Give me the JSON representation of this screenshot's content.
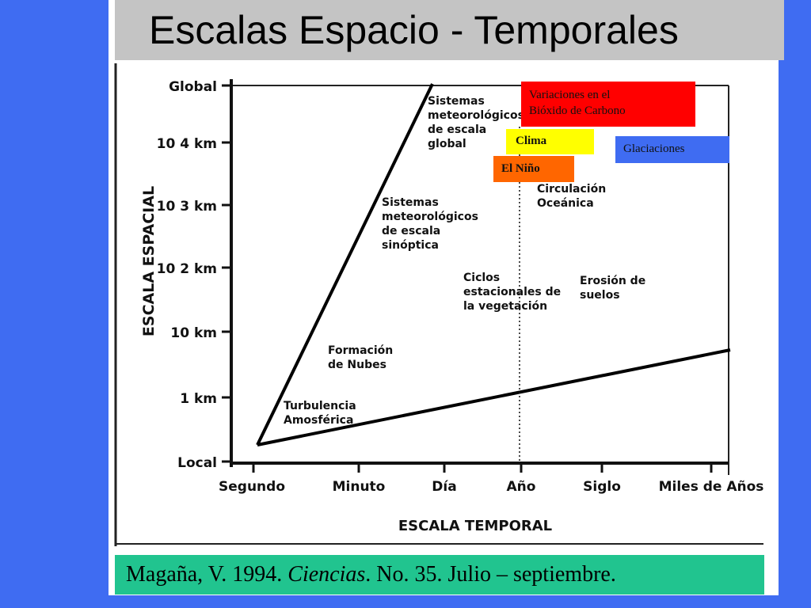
{
  "title": "Escalas Espacio - Temporales",
  "y_axis": {
    "label": "ESCALA ESPACIAL",
    "ticks": [
      "Global",
      "10 4 km",
      "10 3 km",
      "10 2 km",
      "10 km",
      "1 km",
      "Local"
    ]
  },
  "x_axis": {
    "label": "ESCALA TEMPORAL",
    "ticks": [
      "Segundo",
      "Minuto",
      "Día",
      "Año",
      "Siglo",
      "Miles de Años"
    ]
  },
  "regions": {
    "global_weather": [
      "Sistemas",
      "meteorológicos",
      "de escala",
      "global"
    ],
    "synoptic_weather": [
      "Sistemas",
      "meteorológicos",
      "de escala",
      "sinóptica"
    ],
    "ocean_circulation": [
      "Circulación",
      "Oceánica"
    ],
    "vegetation_cycles": [
      "Ciclos",
      "estacionales de",
      "la vegetación"
    ],
    "soil_erosion": [
      "Erosión de",
      "suelos"
    ],
    "cloud_formation": [
      "Formación",
      "de Nubes"
    ],
    "turbulence": [
      "Turbulencia",
      "Amosférica"
    ]
  },
  "tags": {
    "co2": [
      "Variaciones en el",
      "Bióxido de Carbono"
    ],
    "clima": "Clima",
    "nino": "El Niño",
    "glaciaciones": "Glaciaciones"
  },
  "citation": {
    "author": "Magaña, V. 1994. ",
    "journal": "Ciencias",
    "rest": ". No. 35. Julio – septiembre."
  },
  "colors": {
    "background": "#3f6cf2",
    "title_bar": "#c4c4c4",
    "co2_tag": "#ff0000",
    "clima_tag": "#ffff00",
    "nino_tag": "#ff6600",
    "glaciaciones_tag": "#3f6cf2",
    "citation_bar": "#21c48f"
  }
}
